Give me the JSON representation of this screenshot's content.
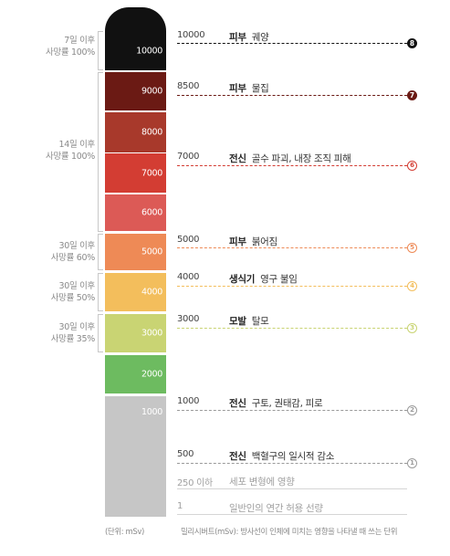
{
  "chart_data": {
    "type": "table",
    "title": "",
    "column_levels": [
      10000,
      9000,
      8000,
      7000,
      6000,
      5000,
      4000,
      3000,
      2000,
      1000
    ],
    "column_colors": [
      "#111111",
      "#6b1a14",
      "#a8392b",
      "#d33d33",
      "#dc5a56",
      "#ee8a56",
      "#f3be5c",
      "#c9d473",
      "#6dbb60",
      "#c6c6c6"
    ],
    "groups": [
      {
        "line1": "7일 이후",
        "line2": "사망률 100%"
      },
      {
        "line1": "14일 이후",
        "line2": "사망률 100%"
      },
      {
        "line1": "30일 이후",
        "line2": "사망률 60%"
      },
      {
        "line1": "30일 이후",
        "line2": "사망률 50%"
      },
      {
        "line1": "30일 이후",
        "line2": "사망률 35%"
      }
    ],
    "rows": [
      {
        "value": "10000",
        "bold": "피부",
        "text": "궤양",
        "badge": "8",
        "color": "#111111",
        "faint": false
      },
      {
        "value": "8500",
        "bold": "피부",
        "text": "물집",
        "badge": "7",
        "color": "#6b1a14",
        "faint": false
      },
      {
        "value": "7000",
        "bold": "전신",
        "text": "골수 파괴, 내장 조직 피해",
        "badge": "6",
        "color": "#d33d33",
        "faint": false
      },
      {
        "value": "5000",
        "bold": "피부",
        "text": "붉어짐",
        "badge": "5",
        "color": "#ee8a56",
        "faint": false
      },
      {
        "value": "4000",
        "bold": "생식기",
        "text": "영구 불임",
        "badge": "4",
        "color": "#f3be5c",
        "faint": false
      },
      {
        "value": "3000",
        "bold": "모발",
        "text": "탈모",
        "badge": "3",
        "color": "#c9d473",
        "faint": false
      },
      {
        "value": "1000",
        "bold": "전신",
        "text": "구토, 권태감, 피로",
        "badge": "2",
        "color": "#9a9a9a",
        "faint": false
      },
      {
        "value": "500",
        "bold": "전신",
        "text": "백혈구의 일시적 감소",
        "badge": "1",
        "color": "#9a9a9a",
        "faint": false
      },
      {
        "value": "250 이하",
        "bold": "",
        "text": "세포 변형에 영향",
        "badge": "",
        "color": "#9a9a9a",
        "faint": true
      },
      {
        "value": "1",
        "bold": "",
        "text": "일반인의 연간 허용 선량",
        "badge": "",
        "color": "#9a9a9a",
        "faint": true
      }
    ],
    "unit_note": "(단위: mSv)",
    "footnote": "밀리시버트(mSv): 방사선이 인체에 미치는 영향을 나타낼 때 쓰는 단위"
  }
}
